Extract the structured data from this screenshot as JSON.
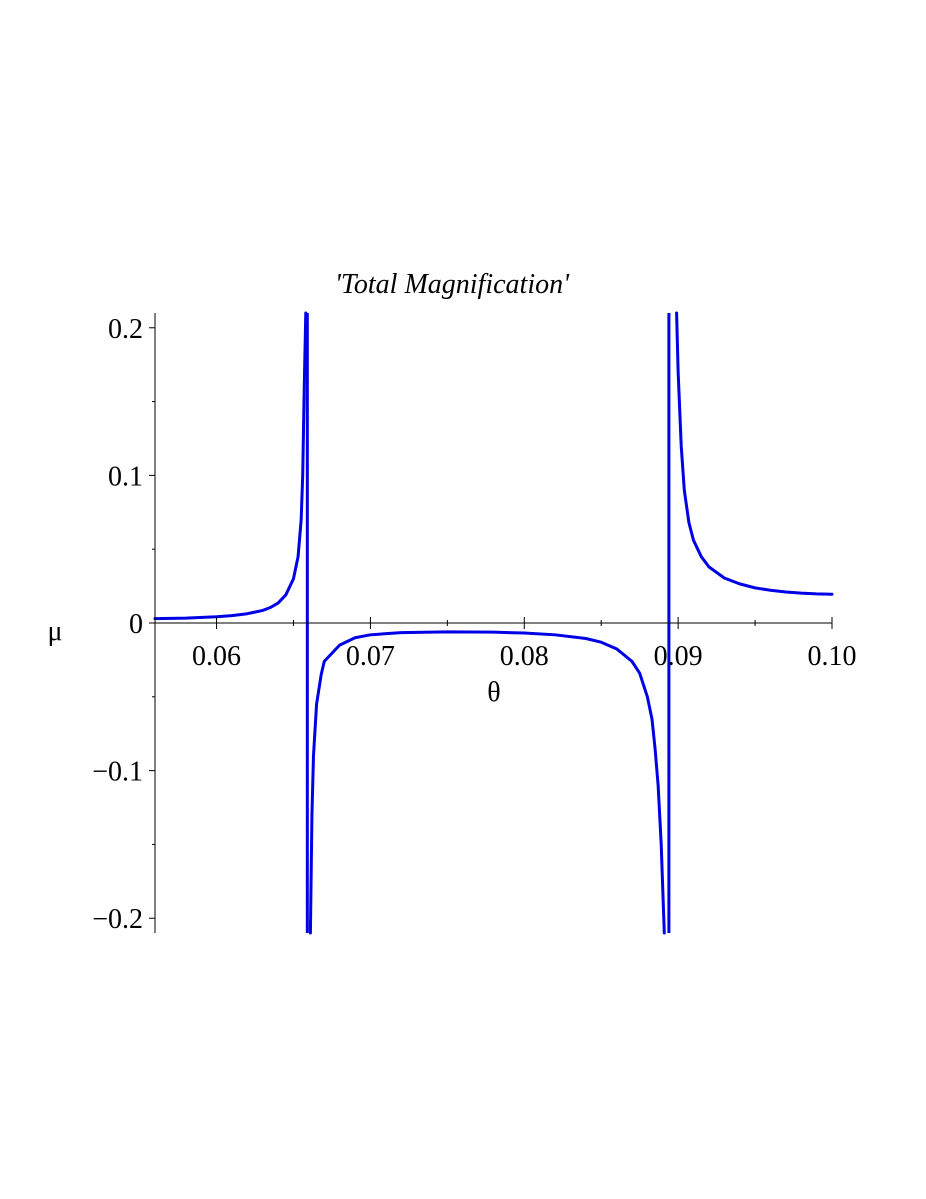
{
  "chart_data": {
    "type": "line",
    "title": "'Total Magnification'",
    "xlabel": "θ",
    "ylabel": "μ",
    "xlim": [
      0.056,
      0.1
    ],
    "ylim": [
      -0.21,
      0.21
    ],
    "x_major_ticks": [
      0.06,
      0.07,
      0.08,
      0.09,
      0.1
    ],
    "x_tick_labels": [
      "0.06",
      "0.07",
      "0.08",
      "0.09",
      "0.10"
    ],
    "x_minor_ticks": [
      0.065,
      0.075,
      0.085,
      0.095
    ],
    "y_major_ticks": [
      -0.2,
      -0.1,
      0,
      0.1,
      0.2
    ],
    "y_tick_labels": [
      "−0.2",
      "−0.1",
      "0",
      "0.1",
      "0.2"
    ],
    "y_minor_ticks": [
      -0.15,
      -0.05,
      0.05,
      0.15
    ],
    "grid": false,
    "asymptotes_x": [
      0.0659,
      0.0894
    ],
    "color": "#0000e6",
    "series": [
      {
        "segment": "left",
        "x": [
          0.056,
          0.058,
          0.06,
          0.061,
          0.062,
          0.063,
          0.0635,
          0.064,
          0.0645,
          0.065,
          0.0653,
          0.0655,
          0.0656,
          0.0657,
          0.0658
        ],
        "y": [
          0.003,
          0.0033,
          0.0042,
          0.005,
          0.0063,
          0.0085,
          0.0105,
          0.0135,
          0.019,
          0.03,
          0.045,
          0.07,
          0.1,
          0.16,
          0.21
        ]
      },
      {
        "segment": "middle",
        "x": [
          0.0661,
          0.0662,
          0.0663,
          0.0665,
          0.0668,
          0.067,
          0.068,
          0.069,
          0.07,
          0.072,
          0.075,
          0.078,
          0.08,
          0.082,
          0.084,
          0.085,
          0.086,
          0.087,
          0.0875,
          0.088,
          0.0883,
          0.0885,
          0.0887,
          0.0889,
          0.0891
        ],
        "y": [
          -0.21,
          -0.13,
          -0.09,
          -0.055,
          -0.035,
          -0.026,
          -0.015,
          -0.01,
          -0.008,
          -0.0065,
          -0.006,
          -0.0062,
          -0.0068,
          -0.008,
          -0.0105,
          -0.013,
          -0.0175,
          -0.026,
          -0.034,
          -0.05,
          -0.065,
          -0.085,
          -0.11,
          -0.15,
          -0.21
        ]
      },
      {
        "segment": "right",
        "x": [
          0.0899,
          0.09,
          0.0902,
          0.0904,
          0.0907,
          0.091,
          0.0915,
          0.092,
          0.093,
          0.094,
          0.095,
          0.096,
          0.097,
          0.098,
          0.099,
          0.1
        ],
        "y": [
          0.21,
          0.17,
          0.12,
          0.09,
          0.068,
          0.056,
          0.045,
          0.038,
          0.0305,
          0.0265,
          0.0238,
          0.0222,
          0.021,
          0.0202,
          0.0197,
          0.0195
        ]
      }
    ]
  }
}
